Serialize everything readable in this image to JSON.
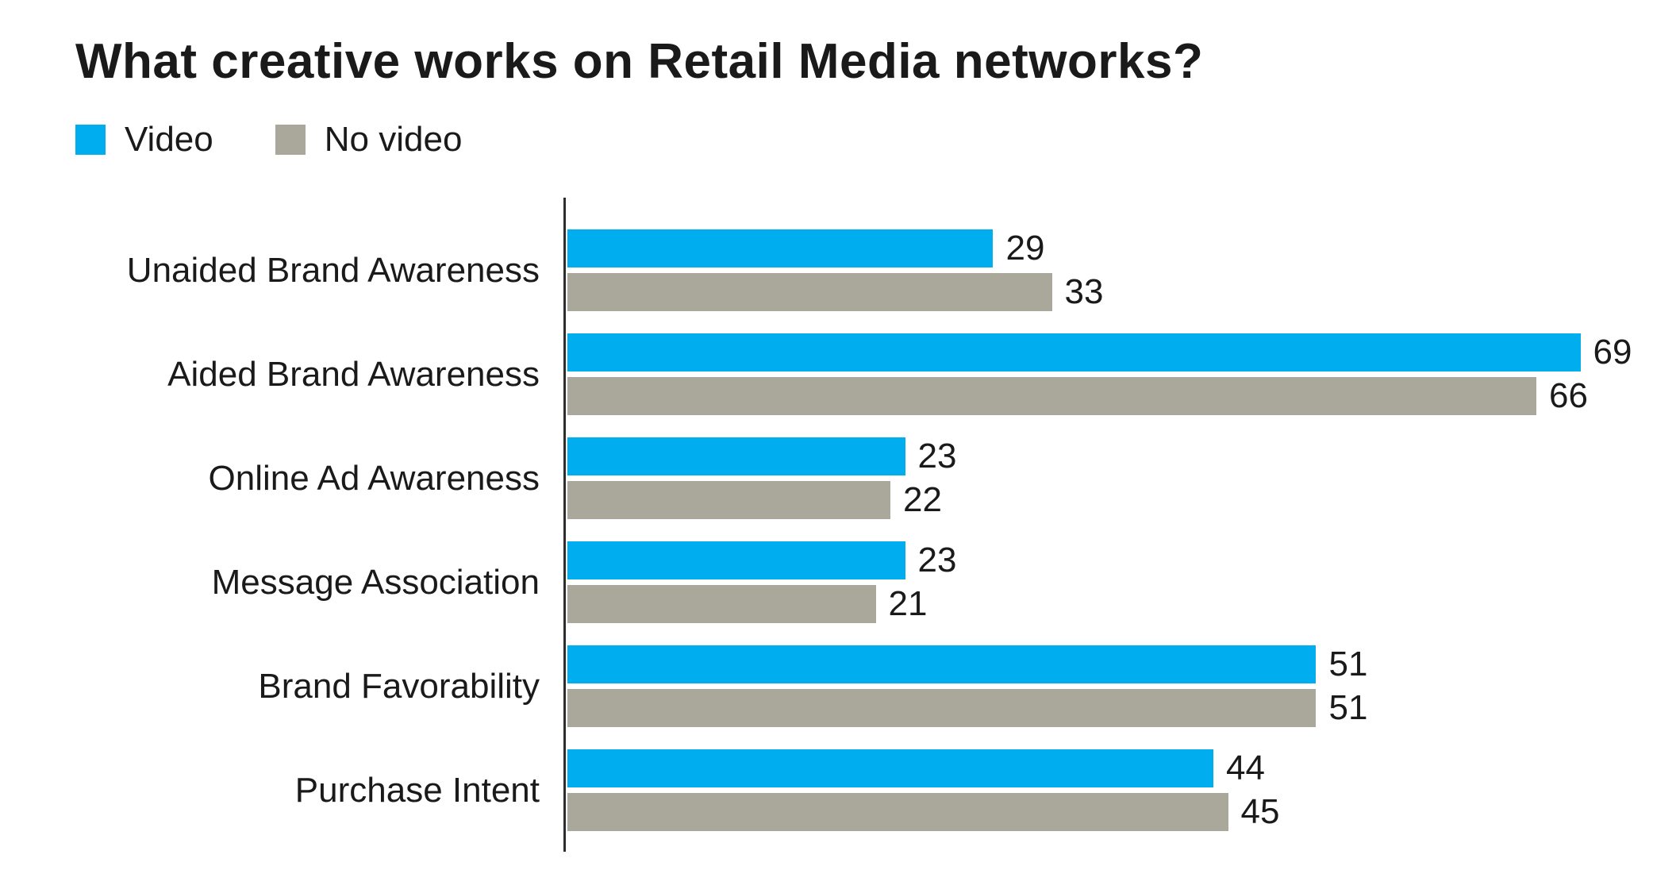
{
  "title": "What creative works on Retail Media networks?",
  "legend": [
    {
      "label": "Video",
      "color": "#00adef"
    },
    {
      "label": "No video",
      "color": "#a9a89b"
    }
  ],
  "colors": {
    "video": "#00adef",
    "no_video": "#a9a89b",
    "axis": "#2e2e2e",
    "text": "#1a1a1a",
    "background": "#ffffff"
  },
  "chart_data": {
    "type": "bar",
    "orientation": "horizontal",
    "title": "What creative works on Retail Media networks?",
    "categories": [
      "Unaided Brand Awareness",
      "Aided Brand Awareness",
      "Online Ad Awareness",
      "Message Association",
      "Brand Favorability",
      "Purchase Intent"
    ],
    "series": [
      {
        "name": "Video",
        "color": "#00adef",
        "values": [
          29,
          69,
          23,
          23,
          51,
          44
        ]
      },
      {
        "name": "No video",
        "color": "#a9a89b",
        "values": [
          33,
          66,
          22,
          21,
          51,
          45
        ]
      }
    ],
    "xlim": [
      0,
      70
    ],
    "xlabel": "",
    "ylabel": "",
    "grid": false,
    "value_labels": true,
    "legend_position": "top-left"
  }
}
